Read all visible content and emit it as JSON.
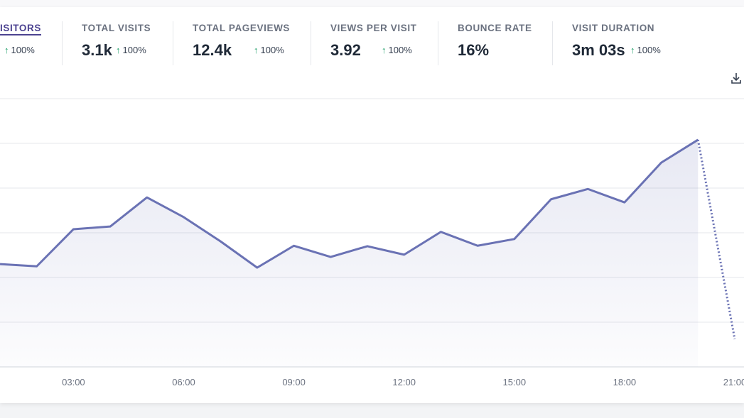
{
  "metrics": [
    {
      "label": "ISITORS",
      "change": "100%"
    },
    {
      "label": "TOTAL VISITS",
      "value": "3.1k",
      "change": "100%"
    },
    {
      "label": "TOTAL PAGEVIEWS",
      "value": "12.4k",
      "change": "100%"
    },
    {
      "label": "VIEWS PER VISIT",
      "value": "3.92",
      "change": "100%"
    },
    {
      "label": "BOUNCE RATE",
      "value": "16%"
    },
    {
      "label": "VISIT DURATION",
      "value": "3m 03s",
      "change": "100%"
    }
  ],
  "chart_data": {
    "type": "line",
    "categories": [
      null,
      null,
      "03:00",
      null,
      null,
      "06:00",
      null,
      null,
      "09:00",
      null,
      null,
      "12:00",
      null,
      null,
      "15:00",
      null,
      null,
      "18:00",
      null,
      null,
      "21:00"
    ],
    "series": [
      {
        "color": "#6a72b4",
        "values": [
          2.3,
          2.25,
          3.08,
          3.14,
          3.79,
          3.35,
          2.81,
          2.22,
          2.71,
          2.46,
          2.7,
          2.51,
          3.02,
          2.71,
          2.86,
          3.75,
          3.98,
          3.68,
          4.57,
          5.08,
          0.62
        ]
      }
    ],
    "ylim": [
      0,
      6
    ],
    "yticks": [
      0,
      1,
      2,
      3,
      4,
      5,
      6
    ],
    "grid": true,
    "dashed_last": true
  }
}
